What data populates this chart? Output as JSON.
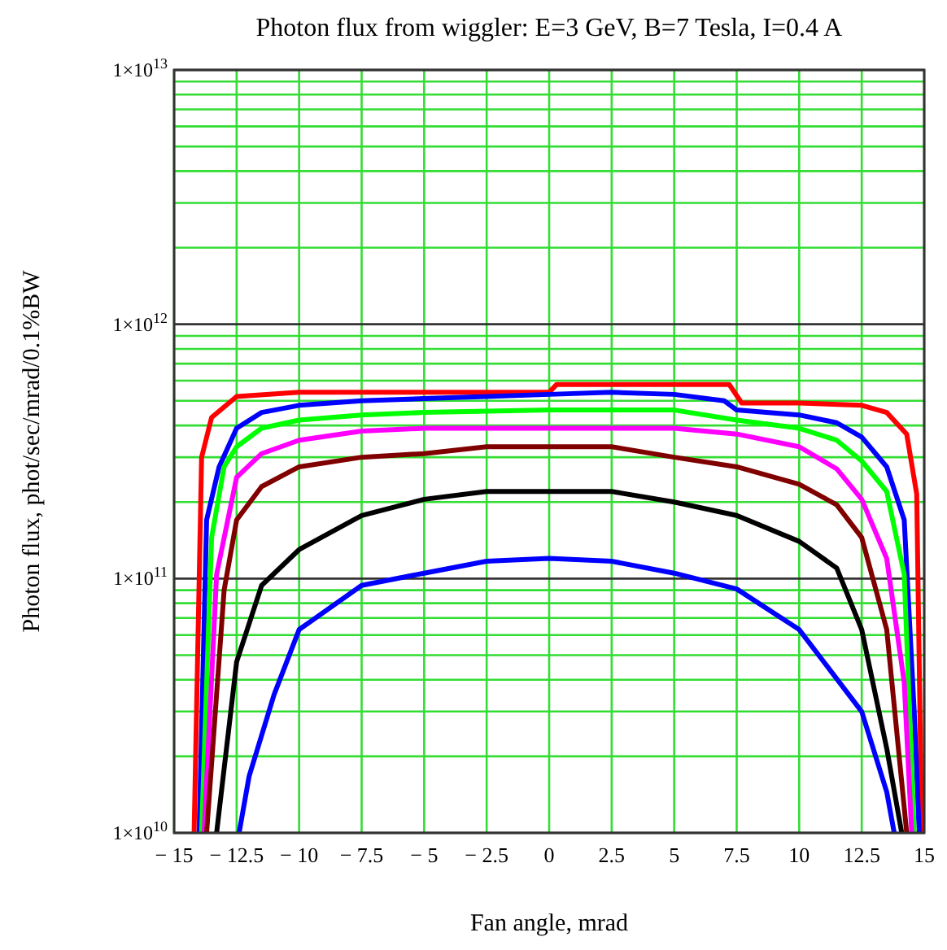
{
  "chart_data": {
    "type": "line",
    "title": "Photon flux from wiggler: E=3 GeV, B=7 Tesla, I=0.4 A",
    "xlabel": "Fan angle, mrad",
    "ylabel": "Photon flux, phot/sec/mrad/0.1%BW",
    "log": "y",
    "grid": true,
    "marker": "none",
    "line_style": "solid",
    "xlim": [
      -15,
      15
    ],
    "ylim": [
      10000000000.0,
      10000000000000.0
    ],
    "xticks": [
      {
        "value": -15,
        "label": "− 15"
      },
      {
        "value": -12.5,
        "label": "− 12.5"
      },
      {
        "value": -10,
        "label": "− 10"
      },
      {
        "value": -7.5,
        "label": "− 7.5"
      },
      {
        "value": -5,
        "label": "− 5"
      },
      {
        "value": -2.5,
        "label": "− 2.5"
      },
      0,
      2.5,
      5,
      7.5,
      10,
      12.5,
      15
    ],
    "yticks": [
      {
        "value": 10000000000.0,
        "label": "1×10$^{10}$"
      },
      {
        "value": 20000000000.0,
        "label": null
      },
      {
        "value": 30000000000.0,
        "label": null
      },
      {
        "value": 40000000000.0,
        "label": null
      },
      {
        "value": 50000000000.0,
        "label": null
      },
      {
        "value": 60000000000.0,
        "label": null
      },
      {
        "value": 70000000000.0,
        "label": null
      },
      {
        "value": 80000000000.0,
        "label": null
      },
      {
        "value": 90000000000.0,
        "label": null
      },
      {
        "value": 100000000000.0,
        "label": "1×10$^{11}$"
      },
      {
        "value": 200000000000.0,
        "label": null
      },
      {
        "value": 300000000000.0,
        "label": null
      },
      {
        "value": 400000000000.0,
        "label": null
      },
      {
        "value": 500000000000.0,
        "label": null
      },
      {
        "value": 600000000000.0,
        "label": null
      },
      {
        "value": 700000000000.0,
        "label": null
      },
      {
        "value": 800000000000.0,
        "label": null
      },
      {
        "value": 900000000000.0,
        "label": null
      },
      {
        "value": 1000000000000.0,
        "label": "1×10$^{12}$"
      },
      {
        "value": 2000000000000.0,
        "label": null
      },
      {
        "value": 3000000000000.0,
        "label": null
      },
      {
        "value": 4000000000000.0,
        "label": null
      },
      {
        "value": 5000000000000.0,
        "label": null
      },
      {
        "value": 6000000000000.0,
        "label": null
      },
      {
        "value": 7000000000000.0,
        "label": null
      },
      {
        "value": 8000000000000.0,
        "label": null
      },
      {
        "value": 9000000000000.0,
        "label": null
      },
      {
        "value": 10000000000000.0,
        "label": "1×10$^{13}$"
      }
    ],
    "series": [
      {
        "color": "#ff0000",
        "x": [
          -14.2,
          -13.9,
          -13.5,
          -12.5,
          -10,
          -5,
          0,
          0.3,
          7.2,
          7.7,
          10,
          12.5,
          13.5,
          14.3,
          14.7,
          14.9
        ],
        "values": [
          10000000000.0,
          300000000000.0,
          430000000000.0,
          520000000000.0,
          540000000000.0,
          540000000000.0,
          540000000000.0,
          580000000000.0,
          580000000000.0,
          490000000000.0,
          490000000000.0,
          480000000000.0,
          450000000000.0,
          370000000000.0,
          215000000000.0,
          10000000000.0
        ]
      },
      {
        "color": "#0000ff",
        "x": [
          -14,
          -13.7,
          -13.2,
          -12.5,
          -11.5,
          -10,
          -7.5,
          -5,
          -2.5,
          0,
          2.5,
          5,
          7,
          7.5,
          10,
          11.5,
          12.5,
          13.5,
          14.2,
          14.6,
          14.8
        ],
        "values": [
          10000000000.0,
          170000000000.0,
          275000000000.0,
          390000000000.0,
          450000000000.0,
          480000000000.0,
          500000000000.0,
          510000000000.0,
          520000000000.0,
          530000000000.0,
          540000000000.0,
          530000000000.0,
          500000000000.0,
          460000000000.0,
          440000000000.0,
          410000000000.0,
          360000000000.0,
          275000000000.0,
          170000000000.0,
          30000000000.0,
          10000000000.0
        ]
      },
      {
        "color": "#00ff00",
        "x": [
          -13.9,
          -13.5,
          -13,
          -12.5,
          -11.5,
          -10,
          -7.5,
          -5,
          0,
          5,
          7.5,
          10,
          11.5,
          12.5,
          13.5,
          14.2,
          14.6
        ],
        "values": [
          10000000000.0,
          145000000000.0,
          275000000000.0,
          330000000000.0,
          390000000000.0,
          420000000000.0,
          440000000000.0,
          450000000000.0,
          460000000000.0,
          460000000000.0,
          420000000000.0,
          390000000000.0,
          350000000000.0,
          290000000000.0,
          220000000000.0,
          104000000000.0,
          10000000000.0
        ]
      },
      {
        "color": "#ff00ff",
        "x": [
          -13.8,
          -13.3,
          -12.5,
          -11.5,
          -10,
          -7.5,
          -5,
          0,
          5,
          7.5,
          10,
          11.5,
          12.5,
          13.5,
          14.2,
          14.5
        ],
        "values": [
          10000000000.0,
          104000000000.0,
          250000000000.0,
          310000000000.0,
          350000000000.0,
          380000000000.0,
          390000000000.0,
          390000000000.0,
          390000000000.0,
          370000000000.0,
          330000000000.0,
          270000000000.0,
          205000000000.0,
          120000000000.0,
          39000000000.0,
          10000000000.0
        ]
      },
      {
        "color": "#800000",
        "x": [
          -13.7,
          -13,
          -12.5,
          -11.5,
          -10,
          -7.5,
          -5,
          -2.5,
          0,
          2.5,
          5,
          7.5,
          10,
          11.5,
          12.5,
          13.5,
          14.3
        ],
        "values": [
          10000000000.0,
          90000000000.0,
          170000000000.0,
          230000000000.0,
          275000000000.0,
          300000000000.0,
          310000000000.0,
          330000000000.0,
          330000000000.0,
          330000000000.0,
          300000000000.0,
          275000000000.0,
          235000000000.0,
          195000000000.0,
          145000000000.0,
          63000000000.0,
          10000000000.0
        ]
      },
      {
        "color": "#000000",
        "x": [
          -13.3,
          -12.5,
          -11.5,
          -10,
          -7.5,
          -5,
          -2.5,
          0,
          2.5,
          5,
          7.5,
          10,
          11.5,
          12.5,
          13.5,
          14.1
        ],
        "values": [
          10000000000.0,
          47000000000.0,
          94000000000.0,
          130000000000.0,
          177000000000.0,
          205000000000.0,
          220000000000.0,
          220000000000.0,
          220000000000.0,
          200000000000.0,
          177000000000.0,
          140000000000.0,
          110000000000.0,
          63000000000.0,
          21500000000.0,
          10000000000.0
        ]
      },
      {
        "color": "#0000ff",
        "x": [
          -12.4,
          -12,
          -11,
          -10,
          -7.5,
          -5,
          -2.5,
          0,
          2.5,
          5,
          7.5,
          10,
          12.5,
          13.5,
          13.8
        ],
        "values": [
          10000000000.0,
          16700000000.0,
          35000000000.0,
          63000000000.0,
          94000000000.0,
          105000000000.0,
          117000000000.0,
          120000000000.0,
          117000000000.0,
          105000000000.0,
          91000000000.0,
          63000000000.0,
          30000000000.0,
          14500000000.0,
          10000000000.0
        ]
      }
    ]
  }
}
